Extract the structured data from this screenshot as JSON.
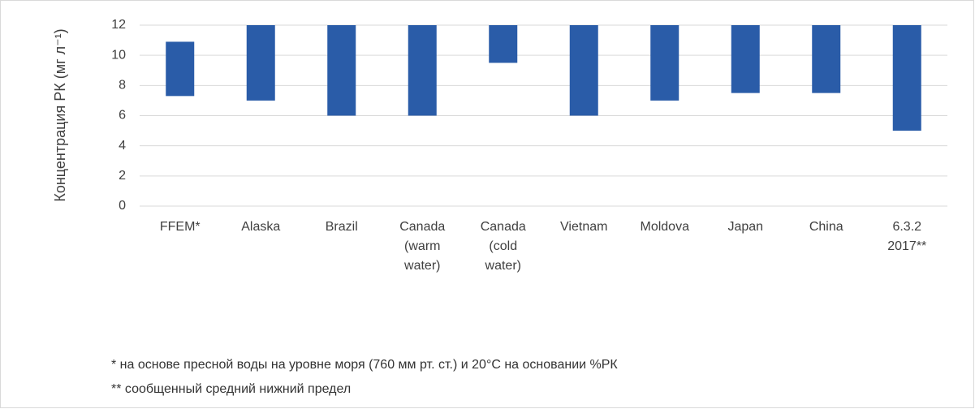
{
  "chart_data": {
    "type": "range_bar",
    "y_label": "Концентрация РК (мг л⁻¹)",
    "categories": [
      "FFEM*",
      "Alaska",
      "Brazil",
      "Canada (warm water)",
      "Canada (cold water)",
      "Vietnam",
      "Moldova",
      "Japan",
      "China",
      "6.3.2 2017**"
    ],
    "low": [
      7.3,
      7,
      6,
      6,
      9.5,
      6,
      7,
      7.5,
      7.5,
      5
    ],
    "high": [
      10.9,
      12,
      12,
      12,
      12,
      12,
      12,
      12,
      12,
      12
    ],
    "color": "#2a5ca8",
    "ylim": [
      0,
      12
    ],
    "yticks": [
      0,
      2,
      4,
      6,
      8,
      10,
      12
    ],
    "grid": true,
    "notes": [
      "* на основе пресной воды на уровне моря (760 мм рт. ст.) и 20°C на основании %РК",
      "** сообщенный средний нижний предел"
    ]
  }
}
